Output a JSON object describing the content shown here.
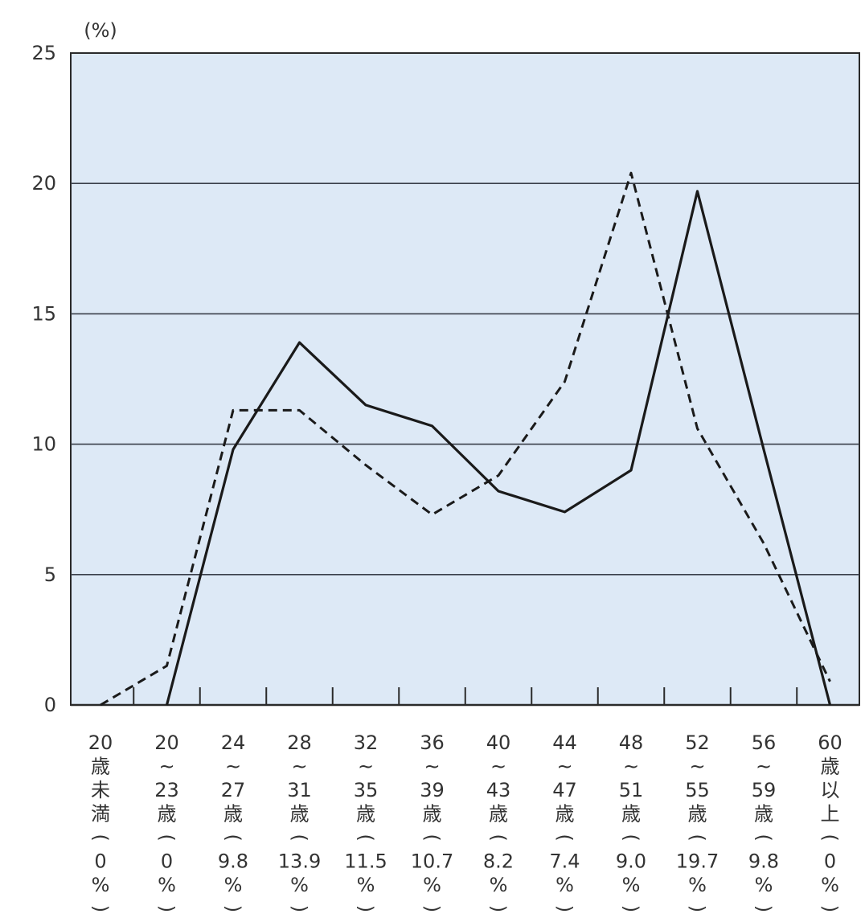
{
  "chart_data": {
    "type": "line",
    "y_unit_label": "(%)",
    "ylim": [
      0,
      25
    ],
    "yticks": [
      "0",
      "5",
      "10",
      "15",
      "20",
      "25"
    ],
    "grid": true,
    "categories": [
      [
        "20",
        "歳",
        "未",
        "満",
        "(",
        "0",
        "%",
        ")"
      ],
      [
        "20",
        "~",
        "23",
        "歳",
        "(",
        "0",
        "%",
        ")"
      ],
      [
        "24",
        "~",
        "27",
        "歳",
        "(",
        "9.8",
        "%",
        ")"
      ],
      [
        "28",
        "~",
        "31",
        "歳",
        "(",
        "13.9",
        "%",
        ")"
      ],
      [
        "32",
        "~",
        "35",
        "歳",
        "(",
        "11.5",
        "%",
        ")"
      ],
      [
        "36",
        "~",
        "39",
        "歳",
        "(",
        "10.7",
        "%",
        ")"
      ],
      [
        "40",
        "~",
        "43",
        "歳",
        "(",
        "8.2",
        "%",
        ")"
      ],
      [
        "44",
        "~",
        "47",
        "歳",
        "(",
        "7.4",
        "%",
        ")"
      ],
      [
        "48",
        "~",
        "51",
        "歳",
        "(",
        "9.0",
        "%",
        ")"
      ],
      [
        "52",
        "~",
        "55",
        "歳",
        "(",
        "19.7",
        "%",
        ")"
      ],
      [
        "56",
        "~",
        "59",
        "歳",
        "(",
        "9.8",
        "%",
        ")"
      ],
      [
        "60",
        "歳",
        "以",
        "上",
        "(",
        "0",
        "%",
        ")"
      ]
    ],
    "series": [
      {
        "style": "solid",
        "color": "#1a1a1a",
        "values": [
          null,
          0,
          9.8,
          13.9,
          11.5,
          10.7,
          8.2,
          7.4,
          9.0,
          19.7,
          9.8,
          0
        ]
      },
      {
        "style": "dashed",
        "color": "#1a1a1a",
        "values": [
          0,
          1.5,
          11.3,
          11.3,
          9.2,
          7.3,
          8.8,
          12.4,
          20.4,
          10.6,
          6.2,
          0.9
        ]
      }
    ]
  },
  "colors": {
    "plot_bg": "#dde9f6",
    "grid": "#3a3f4a",
    "axis": "#2a2a2a"
  }
}
